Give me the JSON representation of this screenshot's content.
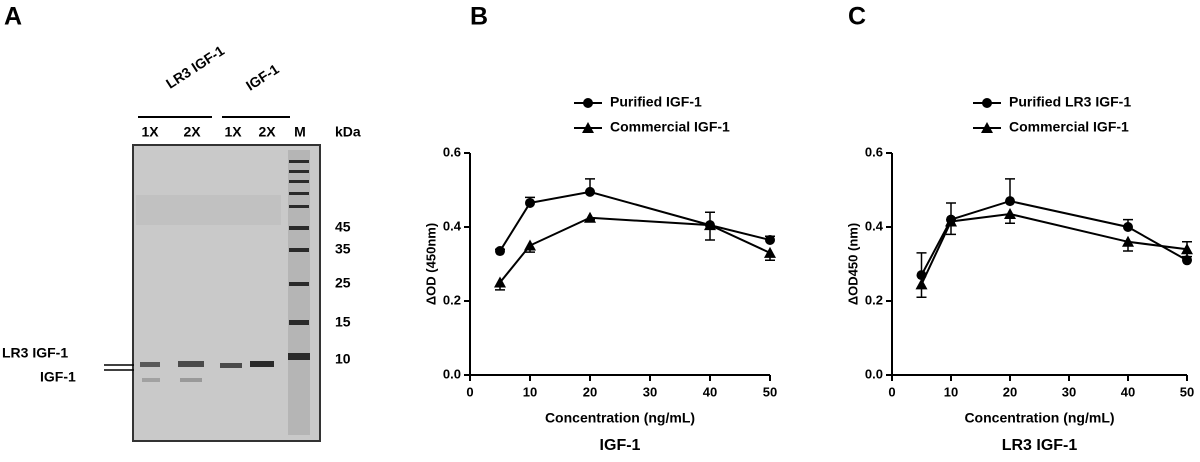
{
  "panels": [
    "A",
    "B",
    "C"
  ],
  "gel": {
    "groups": [
      "LR3 IGF-1",
      "IGF-1"
    ],
    "lanes": [
      "1X",
      "2X",
      "1X",
      "2X",
      "M"
    ],
    "unit": "kDa",
    "markers": [
      "45",
      "35",
      "25",
      "15",
      "10"
    ],
    "band_labels": [
      "LR3 IGF-1",
      "IGF-1"
    ]
  },
  "chart_data": [
    {
      "type": "line",
      "ylabel": "ΔOD (450nm)",
      "xlabel": "Concentration (ng/mL)",
      "caption": "IGF-1",
      "x": [
        5,
        10,
        20,
        40,
        50
      ],
      "series": [
        {
          "name": "Purified IGF-1",
          "color": "#000000",
          "marker": "circle",
          "values": [
            0.335,
            0.465,
            0.495,
            0.405,
            0.365
          ],
          "errors": [
            0.005,
            0.015,
            0.035,
            0.035,
            0.01
          ]
        },
        {
          "name": "Commercial IGF-1",
          "color": "#000000",
          "marker": "triangle",
          "values": [
            0.25,
            0.35,
            0.425,
            0.405,
            0.33
          ],
          "errors": [
            0.02,
            0.018,
            0.005,
            0.04,
            0.02
          ]
        }
      ],
      "xlim": [
        0,
        50
      ],
      "xticks": [
        0,
        10,
        20,
        30,
        40,
        50
      ],
      "ylim": [
        0,
        0.6
      ],
      "yticks": [
        {
          "value": 0,
          "label": "0.0"
        },
        0.2,
        0.4,
        0.6
      ],
      "legend": "top"
    },
    {
      "type": "line",
      "ylabel": "ΔOD450 (nm)",
      "xlabel": "Concentration (ng/mL)",
      "caption": "LR3 IGF-1",
      "x": [
        5,
        10,
        20,
        40,
        50
      ],
      "series": [
        {
          "name": "Purified LR3 IGF-1",
          "color": "#000000",
          "marker": "circle",
          "values": [
            0.27,
            0.42,
            0.47,
            0.4,
            0.31
          ],
          "errors": [
            0.06,
            0.045,
            0.06,
            0.02,
            0.05
          ]
        },
        {
          "name": "Commercial IGF-1",
          "color": "#000000",
          "marker": "triangle",
          "values": [
            0.245,
            0.415,
            0.435,
            0.36,
            0.34
          ],
          "errors": [
            0.035,
            0.035,
            0.025,
            0.025,
            0.02
          ]
        }
      ],
      "xlim": [
        0,
        50
      ],
      "xticks": [
        0,
        10,
        20,
        30,
        40,
        50
      ],
      "ylim": [
        0,
        0.6
      ],
      "yticks": [
        {
          "value": 0,
          "label": "0.0"
        },
        0.2,
        0.4,
        0.6
      ],
      "legend": "top"
    }
  ]
}
